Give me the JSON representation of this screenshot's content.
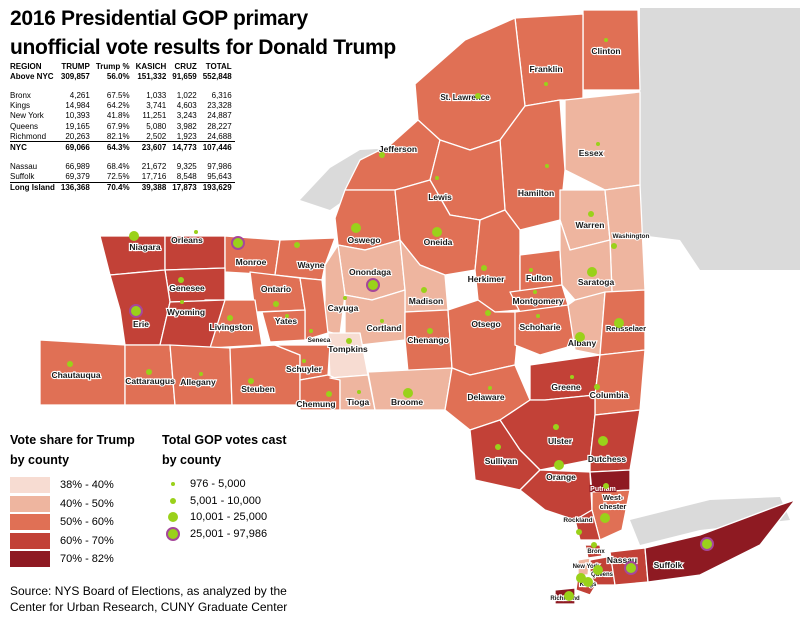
{
  "title_line1": "2016 Presidential GOP primary",
  "title_line2": "unofficial vote results for Donald Trump",
  "table": {
    "headers": [
      "REGION",
      "TRUMP",
      "Trump %",
      "KASICH",
      "CRUZ",
      "TOTAL"
    ],
    "rows": [
      {
        "region": "Above NYC",
        "trump": "309,857",
        "pct": "56.0%",
        "kasich": "151,332",
        "cruz": "91,659",
        "total": "552,848"
      },
      {
        "region": "Bronx",
        "trump": "4,261",
        "pct": "67.5%",
        "kasich": "1,033",
        "cruz": "1,022",
        "total": "6,316"
      },
      {
        "region": "Kings",
        "trump": "14,984",
        "pct": "64.2%",
        "kasich": "3,741",
        "cruz": "4,603",
        "total": "23,328"
      },
      {
        "region": "New York",
        "trump": "10,393",
        "pct": "41.8%",
        "kasich": "11,251",
        "cruz": "3,243",
        "total": "24,887"
      },
      {
        "region": "Queens",
        "trump": "19,165",
        "pct": "67.9%",
        "kasich": "5,080",
        "cruz": "3,982",
        "total": "28,227"
      },
      {
        "region": "Richmond",
        "trump": "20,263",
        "pct": "82.1%",
        "kasich": "2,502",
        "cruz": "1,923",
        "total": "24,688"
      },
      {
        "region": "NYC",
        "trump": "69,066",
        "pct": "64.3%",
        "kasich": "23,607",
        "cruz": "14,773",
        "total": "107,446"
      },
      {
        "region": "Nassau",
        "trump": "66,989",
        "pct": "68.4%",
        "kasich": "21,672",
        "cruz": "9,325",
        "total": "97,986"
      },
      {
        "region": "Suffolk",
        "trump": "69,379",
        "pct": "72.5%",
        "kasich": "17,716",
        "cruz": "8,548",
        "total": "95,643"
      },
      {
        "region": "Long Island",
        "trump": "136,368",
        "pct": "70.4%",
        "kasich": "39,388",
        "cruz": "17,873",
        "total": "193,629"
      }
    ]
  },
  "legend_share": {
    "title_line1": "Vote share for Trump",
    "title_line2": "by county",
    "items": [
      {
        "label": "38% - 40%",
        "color": "#f7dcd2"
      },
      {
        "label": "40% - 50%",
        "color": "#eeb59f"
      },
      {
        "label": "50% - 60%",
        "color": "#e07055"
      },
      {
        "label": "60% - 70%",
        "color": "#c24137"
      },
      {
        "label": "70% - 82%",
        "color": "#8e1a22"
      }
    ]
  },
  "legend_votes": {
    "title_line1": "Total GOP votes cast",
    "title_line2": "by county",
    "items": [
      {
        "label": "976 - 5,000",
        "size": "small"
      },
      {
        "label": "5,001 - 10,000",
        "size": "medium"
      },
      {
        "label": "10,001 - 25,000",
        "size": "large"
      },
      {
        "label": "25,001 - 97,986",
        "size": "largest"
      }
    ]
  },
  "colors": {
    "bin_38_40": "#f7dcd2",
    "bin_40_50": "#eeb59f",
    "bin_50_60": "#e07055",
    "bin_60_70": "#c24137",
    "bin_70_82": "#8e1a22",
    "vote_dot": "#9ad11a",
    "vote_dot_ring": "#a6479a",
    "outside_state": "#dadada",
    "county_border": "#ffffff"
  },
  "counties": [
    {
      "name": "Clinton",
      "bin": "50-60"
    },
    {
      "name": "Franklin",
      "bin": "50-60"
    },
    {
      "name": "St. Lawrence",
      "bin": "50-60"
    },
    {
      "name": "Essex",
      "bin": "40-50"
    },
    {
      "name": "Jefferson",
      "bin": "50-60"
    },
    {
      "name": "Hamilton",
      "bin": "50-60"
    },
    {
      "name": "Lewis",
      "bin": "50-60"
    },
    {
      "name": "Warren",
      "bin": "40-50"
    },
    {
      "name": "Washington",
      "bin": "40-50"
    },
    {
      "name": "Oswego",
      "bin": "50-60"
    },
    {
      "name": "Oneida",
      "bin": "50-60"
    },
    {
      "name": "Niagara",
      "bin": "60-70"
    },
    {
      "name": "Orleans",
      "bin": "60-70"
    },
    {
      "name": "Monroe",
      "bin": "50-60"
    },
    {
      "name": "Wayne",
      "bin": "50-60"
    },
    {
      "name": "Onondaga",
      "bin": "40-50"
    },
    {
      "name": "Herkimer",
      "bin": "50-60"
    },
    {
      "name": "Fulton",
      "bin": "50-60"
    },
    {
      "name": "Saratoga",
      "bin": "40-50"
    },
    {
      "name": "Genesee",
      "bin": "60-70"
    },
    {
      "name": "Ontario",
      "bin": "50-60"
    },
    {
      "name": "Madison",
      "bin": "40-50"
    },
    {
      "name": "Montgomery",
      "bin": "50-60"
    },
    {
      "name": "Erie",
      "bin": "60-70"
    },
    {
      "name": "Wyoming",
      "bin": "60-70"
    },
    {
      "name": "Livingston",
      "bin": "50-60"
    },
    {
      "name": "Yates",
      "bin": "50-60"
    },
    {
      "name": "Cayuga",
      "bin": "40-50"
    },
    {
      "name": "Cortland",
      "bin": "40-50"
    },
    {
      "name": "Otsego",
      "bin": "50-60"
    },
    {
      "name": "Schoharie",
      "bin": "50-60"
    },
    {
      "name": "Rensselaer",
      "bin": "50-60"
    },
    {
      "name": "Seneca",
      "bin": "50-60"
    },
    {
      "name": "Tompkins",
      "bin": "38-40"
    },
    {
      "name": "Chenango",
      "bin": "50-60"
    },
    {
      "name": "Albany",
      "bin": "40-50"
    },
    {
      "name": "Chautauqua",
      "bin": "50-60"
    },
    {
      "name": "Cattaraugus",
      "bin": "50-60"
    },
    {
      "name": "Allegany",
      "bin": "50-60"
    },
    {
      "name": "Steuben",
      "bin": "50-60"
    },
    {
      "name": "Schuyler",
      "bin": "50-60"
    },
    {
      "name": "Chemung",
      "bin": "50-60"
    },
    {
      "name": "Tioga",
      "bin": "40-50"
    },
    {
      "name": "Broome",
      "bin": "40-50"
    },
    {
      "name": "Delaware",
      "bin": "50-60"
    },
    {
      "name": "Greene",
      "bin": "60-70"
    },
    {
      "name": "Columbia",
      "bin": "50-60"
    },
    {
      "name": "Ulster",
      "bin": "60-70"
    },
    {
      "name": "Sullivan",
      "bin": "60-70"
    },
    {
      "name": "Dutchess",
      "bin": "60-70"
    },
    {
      "name": "Orange",
      "bin": "60-70"
    },
    {
      "name": "Putnam",
      "bin": "70-82"
    },
    {
      "name": "West-chester",
      "bin": "50-60"
    },
    {
      "name": "Rockland",
      "bin": "60-70"
    },
    {
      "name": "Bronx",
      "bin": "60-70"
    },
    {
      "name": "New York",
      "bin": "40-50"
    },
    {
      "name": "Queens",
      "bin": "60-70"
    },
    {
      "name": "Kings",
      "bin": "60-70"
    },
    {
      "name": "Richmond",
      "bin": "70-82"
    },
    {
      "name": "Nassau",
      "bin": "60-70"
    },
    {
      "name": "Suffolk",
      "bin": "70-82"
    }
  ],
  "source_line1": "Source: NYS Board of Elections, as analyzed by the",
  "source_line2": "Center for Urban Research, CUNY Graduate Center"
}
